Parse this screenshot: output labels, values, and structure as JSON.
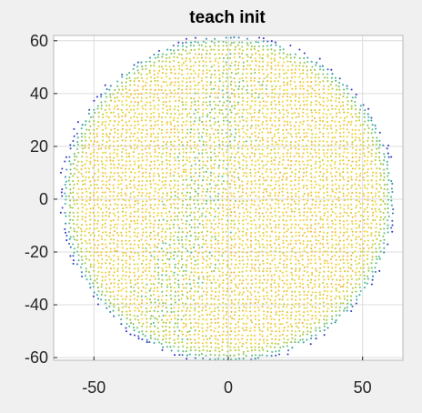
{
  "chart_data": {
    "type": "scatter",
    "title": "teach init",
    "xlabel": "",
    "ylabel": "",
    "xlim": [
      -65,
      65
    ],
    "ylim": [
      -61,
      62
    ],
    "xticks": [
      -50,
      0,
      50
    ],
    "xtick_labels": [
      "-50",
      "0",
      "50"
    ],
    "yticks": [
      60,
      40,
      20,
      0,
      -20,
      -40,
      -60
    ],
    "ytick_labels": [
      "60",
      "40",
      "20",
      "0",
      "-20",
      "-40",
      "-60"
    ],
    "grid": true,
    "series": [
      {
        "name": "points",
        "shape": "disc",
        "center": [
          0,
          0
        ],
        "radius": 62,
        "point_spacing": 1.5,
        "color_scale": "parula (blue at edge → yellow/orange in interior)"
      }
    ]
  },
  "colors": {
    "figure_background": "#f0f0f0",
    "axes_background": "#ffffff",
    "grid": "#dcdcdc",
    "axis": "#262626",
    "edge_blue": "#3a3ac8",
    "mid_teal": "#3cb8a0",
    "mid_green": "#a6c83c",
    "inner_yellow": "#f2d630",
    "inner_orange": "#eeb43a"
  }
}
